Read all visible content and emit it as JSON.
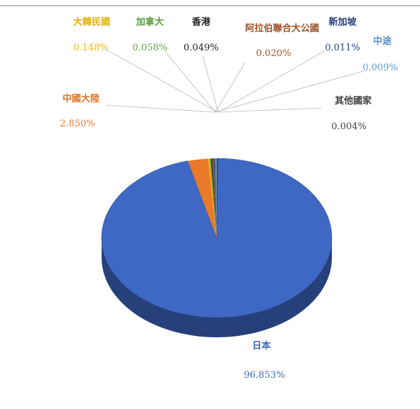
{
  "chart_data": {
    "type": "pie",
    "style": "3d",
    "title": "",
    "unit": "%",
    "slices": [
      {
        "label": "日本",
        "value": 96.853,
        "value_text": "96.853%",
        "color": "#3e68c4"
      },
      {
        "label": "中國大陸",
        "value": 2.85,
        "value_text": "2.850%",
        "color": "#e97a2a"
      },
      {
        "label": "大韓民國",
        "value": 0.148,
        "value_text": "0.148%",
        "color": "#f2b800"
      },
      {
        "label": "加拿大",
        "value": 0.058,
        "value_text": "0.058%",
        "color": "#62a83d"
      },
      {
        "label": "香港",
        "value": 0.049,
        "value_text": "0.049%",
        "color": "#2b2b2b"
      },
      {
        "label": "阿拉伯聯合大公國",
        "value": 0.02,
        "value_text": "0.020%",
        "color": "#a5552a"
      },
      {
        "label": "新加坡",
        "value": 0.011,
        "value_text": "0.011%",
        "color": "#253f82"
      },
      {
        "label": "中途",
        "value": 0.009,
        "value_text": "0.009%",
        "color": "#5b9bd5"
      },
      {
        "label": "其他國家",
        "value": 0.004,
        "value_text": "0.004%",
        "color": "#444444"
      }
    ]
  }
}
